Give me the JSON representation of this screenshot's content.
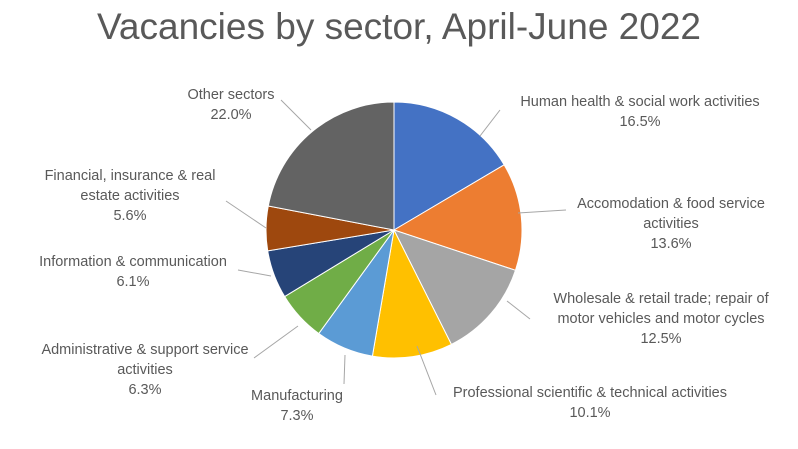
{
  "chart_data": {
    "type": "pie",
    "title": "Vacancies by sector, April-June 2022",
    "start": "top",
    "direction": "clockwise",
    "slices": [
      {
        "label": [
          "Human health & social work activities"
        ],
        "pct_label": "16.5%",
        "value": 16.5,
        "color": "#4472C4"
      },
      {
        "label": [
          "Accomodation & food service",
          "activities"
        ],
        "pct_label": "13.6%",
        "value": 13.6,
        "color": "#ED7D31"
      },
      {
        "label": [
          "Wholesale & retail trade; repair of",
          "motor vehicles and motor cycles"
        ],
        "pct_label": "12.5%",
        "value": 12.5,
        "color": "#A5A5A5"
      },
      {
        "label": [
          "Professional scientific & technical activities"
        ],
        "pct_label": "10.1%",
        "value": 10.1,
        "color": "#FFC000"
      },
      {
        "label": [
          "Manufacturing"
        ],
        "pct_label": "7.3%",
        "value": 7.3,
        "color": "#5B9BD5"
      },
      {
        "label": [
          "Administrative & support service",
          "activities"
        ],
        "pct_label": "6.3%",
        "value": 6.3,
        "color": "#70AD47"
      },
      {
        "label": [
          "Information & communication"
        ],
        "pct_label": "6.1%",
        "value": 6.1,
        "color": "#264478"
      },
      {
        "label": [
          "Financial,  insurance & real",
          "estate activities"
        ],
        "pct_label": "5.6%",
        "value": 5.6,
        "color": "#9E480E"
      },
      {
        "label": [
          "Other sectors"
        ],
        "pct_label": "22.0%",
        "value": 22.0,
        "color": "#636363"
      }
    ]
  }
}
